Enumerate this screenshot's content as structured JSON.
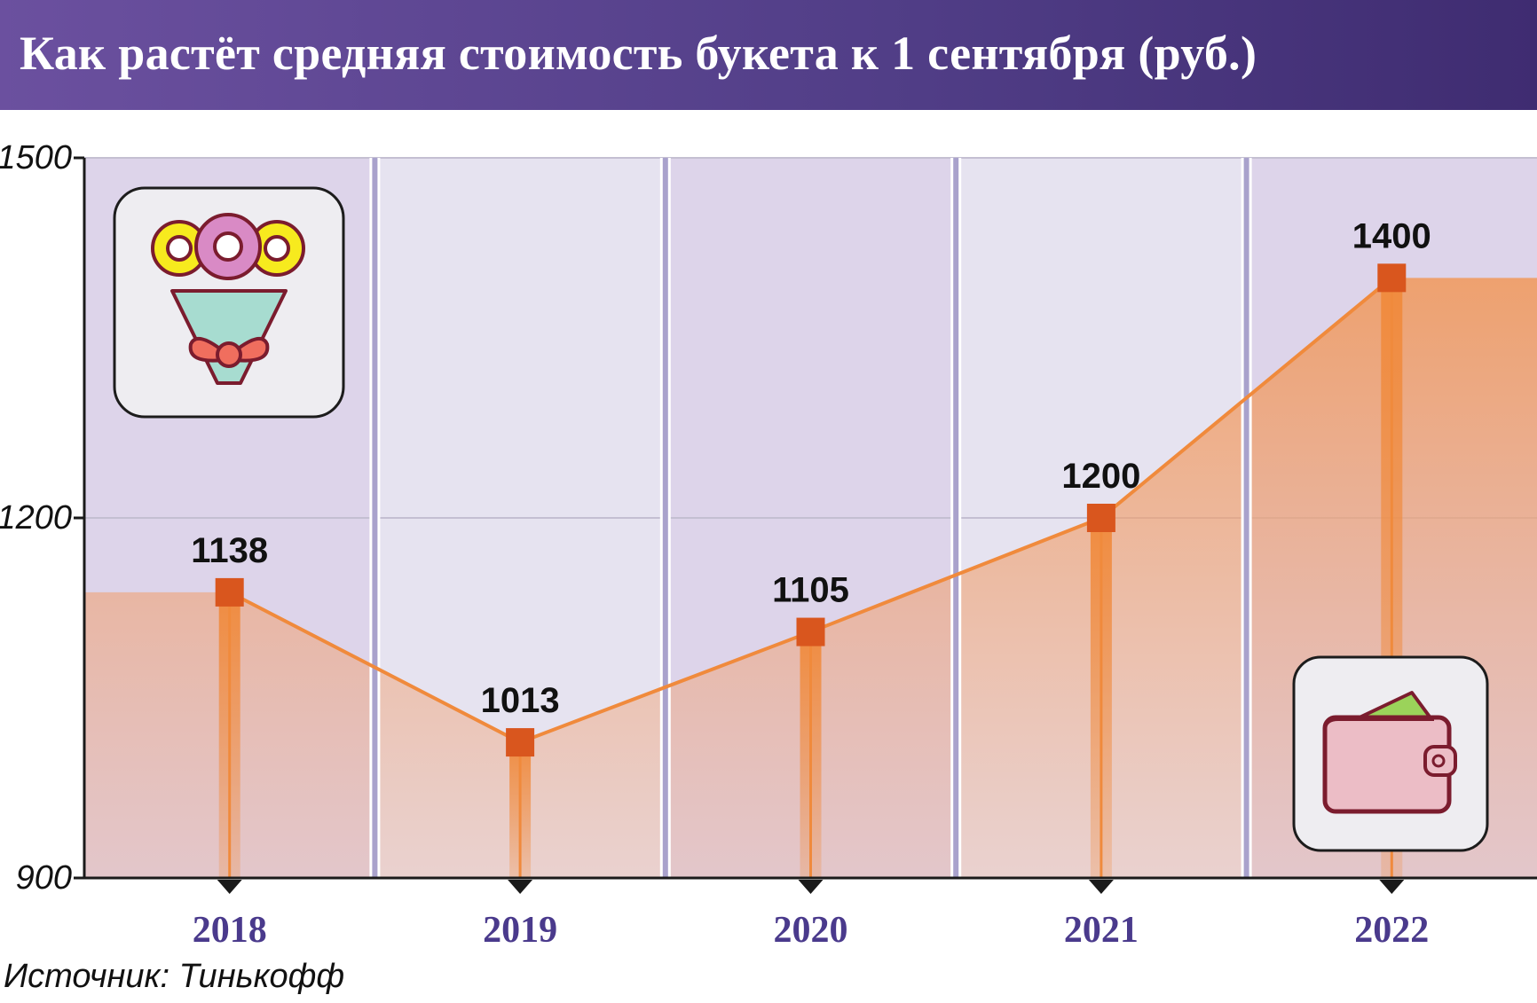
{
  "header": {
    "title": "Как растёт средняя стоимость букета к 1 сентября (руб.)"
  },
  "source": "Источник: Тинькофф",
  "icons": {
    "top_left": "bouquet-icon",
    "bottom_right": "wallet-icon"
  },
  "colors": {
    "header_start": "#6b509f",
    "header_end": "#3f2c71",
    "line": "#f08a3c",
    "marker": "#d9561e",
    "area": "#f0a06c",
    "year_label": "#4a3a8c",
    "band_dark": "#ddd4ea",
    "band_light": "#e6e3f0",
    "separator": "#a9a2cc"
  },
  "chart_data": {
    "type": "line",
    "title": "Как растёт средняя стоимость букета к 1 сентября (руб.)",
    "categories": [
      "2018",
      "2019",
      "2020",
      "2021",
      "2022"
    ],
    "series": [
      {
        "values": [
          1138,
          1013,
          1105,
          1200,
          1400
        ]
      }
    ],
    "data_labels": [
      "1138",
      "1013",
      "1105",
      "1200",
      "1400"
    ],
    "y_ticks": [
      "1500",
      "1200",
      "900"
    ],
    "y_tick_values": [
      1500,
      1200,
      900
    ],
    "ylim": [
      900,
      1500
    ],
    "xlabel": "",
    "ylabel": "",
    "grid": true,
    "legend": "none"
  }
}
